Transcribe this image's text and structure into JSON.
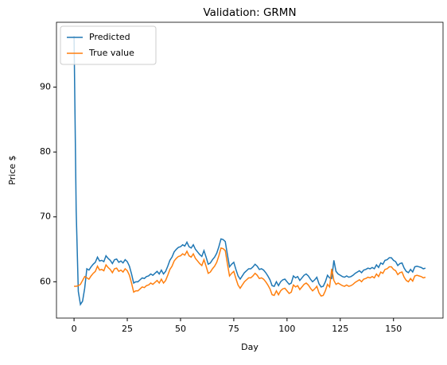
{
  "chart_data": {
    "type": "line",
    "title": "Validation: GRMN",
    "xlabel": "Day",
    "ylabel": "Price $",
    "x": [
      0,
      1,
      2,
      3,
      4,
      5,
      6,
      7,
      8,
      9,
      10,
      11,
      12,
      13,
      14,
      15,
      16,
      17,
      18,
      19,
      20,
      21,
      22,
      23,
      24,
      25,
      26,
      27,
      28,
      29,
      30,
      31,
      32,
      33,
      34,
      35,
      36,
      37,
      38,
      39,
      40,
      41,
      42,
      43,
      44,
      45,
      46,
      47,
      48,
      49,
      50,
      51,
      52,
      53,
      54,
      55,
      56,
      57,
      58,
      59,
      60,
      61,
      62,
      63,
      64,
      65,
      66,
      67,
      68,
      69,
      70,
      71,
      72,
      73,
      74,
      75,
      76,
      77,
      78,
      79,
      80,
      81,
      82,
      83,
      84,
      85,
      86,
      87,
      88,
      89,
      90,
      91,
      92,
      93,
      94,
      95,
      96,
      97,
      98,
      99,
      100,
      101,
      102,
      103,
      104,
      105,
      106,
      107,
      108,
      109,
      110,
      111,
      112,
      113,
      114,
      115,
      116,
      117,
      118,
      119,
      120,
      121,
      122,
      123,
      124,
      125,
      126,
      127,
      128,
      129,
      130,
      131,
      132,
      133,
      134,
      135,
      136,
      137,
      138,
      139,
      140,
      141,
      142,
      143,
      144,
      145,
      146,
      147,
      148,
      149,
      150,
      151,
      152,
      153,
      154,
      155,
      156,
      157,
      158,
      159,
      160,
      161,
      162,
      163,
      164,
      165
    ],
    "series": [
      {
        "name": "Predicted",
        "color": "#1f77b4",
        "values": [
          97.9,
          71.0,
          58.5,
          56.5,
          57.0,
          59.0,
          62.0,
          61.8,
          62.3,
          62.7,
          63.0,
          63.8,
          63.2,
          63.3,
          63.1,
          64.0,
          63.6,
          63.3,
          62.8,
          63.4,
          63.5,
          63.0,
          63.2,
          62.9,
          63.4,
          63.1,
          62.4,
          61.2,
          59.8,
          60.0,
          60.0,
          60.3,
          60.6,
          60.5,
          60.8,
          60.9,
          61.2,
          61.0,
          61.3,
          61.6,
          61.2,
          61.8,
          61.2,
          61.6,
          62.4,
          63.3,
          63.8,
          64.6,
          65.0,
          65.3,
          65.4,
          65.7,
          65.5,
          66.1,
          65.4,
          65.2,
          65.7,
          65.0,
          64.6,
          64.2,
          63.9,
          64.8,
          63.8,
          62.7,
          62.9,
          63.4,
          63.8,
          64.4,
          65.4,
          66.6,
          66.5,
          66.2,
          64.2,
          62.3,
          62.7,
          63.0,
          61.9,
          60.9,
          60.4,
          60.9,
          61.4,
          61.7,
          62.0,
          62.0,
          62.3,
          62.7,
          62.4,
          61.9,
          62.0,
          61.8,
          61.4,
          60.9,
          60.3,
          59.4,
          59.3,
          60.0,
          59.4,
          60.0,
          60.3,
          60.4,
          60.0,
          59.6,
          59.8,
          60.9,
          60.6,
          60.8,
          60.2,
          60.6,
          61.0,
          61.2,
          60.9,
          60.4,
          60.0,
          60.3,
          60.7,
          59.7,
          59.2,
          59.3,
          60.0,
          61.0,
          60.6,
          60.5,
          63.3,
          61.6,
          61.2,
          61.0,
          60.8,
          60.7,
          60.9,
          60.7,
          60.8,
          61.0,
          61.3,
          61.5,
          61.7,
          61.4,
          61.8,
          61.9,
          62.1,
          62.0,
          62.2,
          62.0,
          62.6,
          62.2,
          62.9,
          62.7,
          63.3,
          63.4,
          63.7,
          63.7,
          63.3,
          63.1,
          62.5,
          62.8,
          62.9,
          62.1,
          61.6,
          61.4,
          61.9,
          61.5,
          62.3,
          62.4,
          62.3,
          62.2,
          62.0,
          62.1
        ]
      },
      {
        "name": "True value",
        "color": "#ff7f0e",
        "values": [
          59.3,
          59.3,
          59.4,
          59.6,
          60.2,
          60.8,
          60.6,
          60.4,
          60.9,
          61.3,
          61.6,
          62.4,
          61.8,
          61.9,
          61.7,
          62.6,
          62.2,
          61.9,
          61.4,
          62.0,
          62.1,
          61.6,
          61.8,
          61.5,
          62.0,
          61.7,
          61.0,
          59.8,
          58.4,
          58.6,
          58.6,
          58.9,
          59.2,
          59.1,
          59.4,
          59.5,
          59.8,
          59.6,
          59.9,
          60.2,
          59.8,
          60.4,
          59.8,
          60.2,
          61.0,
          61.9,
          62.4,
          63.2,
          63.6,
          63.9,
          64.0,
          64.3,
          64.1,
          64.7,
          64.0,
          63.8,
          64.3,
          63.6,
          63.2,
          62.8,
          62.5,
          63.4,
          62.4,
          61.3,
          61.5,
          62.0,
          62.4,
          63.0,
          64.0,
          65.2,
          65.1,
          64.8,
          62.8,
          60.9,
          61.3,
          61.6,
          60.5,
          59.5,
          59.0,
          59.5,
          60.0,
          60.3,
          60.6,
          60.6,
          60.9,
          61.3,
          61.0,
          60.5,
          60.6,
          60.4,
          60.0,
          59.5,
          58.9,
          58.0,
          57.9,
          58.6,
          58.0,
          58.6,
          58.9,
          59.0,
          58.6,
          58.2,
          58.4,
          59.5,
          59.2,
          59.4,
          58.8,
          59.2,
          59.6,
          59.8,
          59.5,
          59.0,
          58.6,
          58.9,
          59.3,
          58.3,
          57.8,
          57.9,
          58.6,
          59.6,
          59.2,
          62.0,
          60.2,
          59.6,
          59.8,
          59.6,
          59.4,
          59.3,
          59.5,
          59.3,
          59.4,
          59.6,
          59.9,
          60.1,
          60.3,
          60.0,
          60.4,
          60.5,
          60.7,
          60.6,
          60.8,
          60.6,
          61.2,
          60.8,
          61.5,
          61.3,
          61.9,
          62.0,
          62.3,
          62.3,
          61.9,
          61.7,
          61.1,
          61.4,
          61.5,
          60.7,
          60.2,
          60.0,
          60.5,
          60.1,
          60.9,
          61.0,
          60.9,
          60.8,
          60.6,
          60.7
        ]
      }
    ],
    "xlim": [
      -8.25,
      173.25
    ],
    "xticks": [
      0,
      25,
      50,
      75,
      100,
      125,
      150
    ],
    "ylim": [
      54.4,
      100
    ],
    "yticks": [
      60,
      70,
      80,
      90
    ],
    "legend": "upper left"
  }
}
